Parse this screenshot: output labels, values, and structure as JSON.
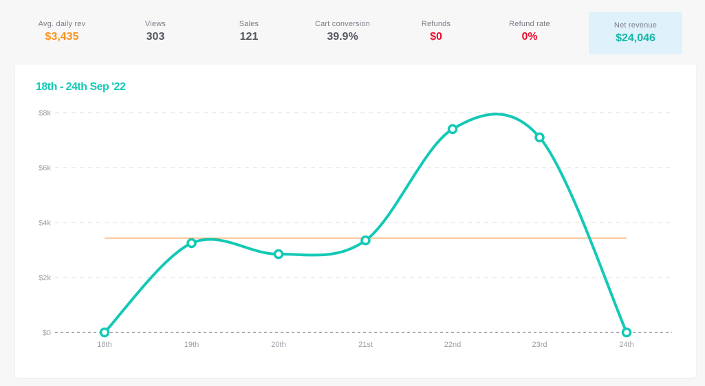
{
  "stats": [
    {
      "label": "Avg. daily rev",
      "value": "$3,435",
      "color": "#f7931e"
    },
    {
      "label": "Views",
      "value": "303",
      "color": "#55585f"
    },
    {
      "label": "Sales",
      "value": "121",
      "color": "#55585f"
    },
    {
      "label": "Cart conversion",
      "value": "39.9%",
      "color": "#55585f"
    },
    {
      "label": "Refunds",
      "value": "$0",
      "color": "#e8102e"
    },
    {
      "label": "Refund rate",
      "value": "0%",
      "color": "#e8102e"
    },
    {
      "label": "Net revenue",
      "value": "$24,046",
      "color": "#13b8a6"
    }
  ],
  "chart_data": {
    "type": "line",
    "title": "18th - 24th Sep '22",
    "categories": [
      "18th",
      "19th",
      "20th",
      "21st",
      "22nd",
      "23rd",
      "24th"
    ],
    "series": [
      {
        "values": [
          0,
          3250,
          2850,
          3350,
          7400,
          7100,
          0
        ],
        "color": "#13c9b6"
      }
    ],
    "reference_line": {
      "value": 3435,
      "color": "#f7a25a"
    },
    "y_ticks": [
      "$0",
      "$2k",
      "$4k",
      "$6k",
      "$8k"
    ],
    "ylim": [
      0,
      8000
    ],
    "grid": true
  }
}
